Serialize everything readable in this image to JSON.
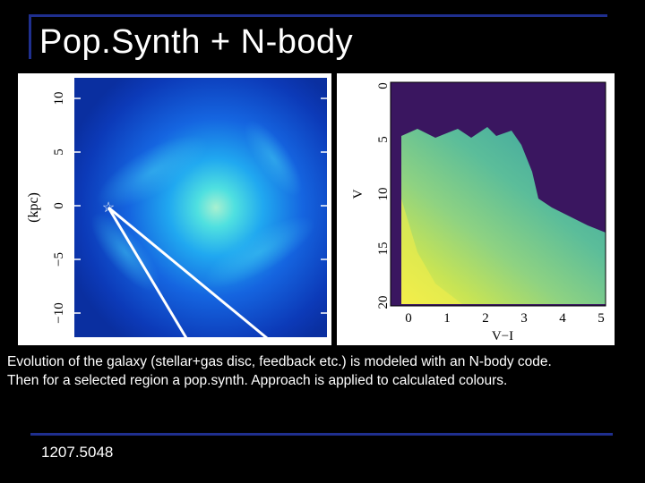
{
  "slide": {
    "title": "Pop.Synth + N-body",
    "caption_line1": "Evolution of the galaxy (stellar+gas disc, feedback etc.) is modeled with an N-body code.",
    "caption_line2": "Then for a selected region a pop.synth. Approach is applied to calculated colours.",
    "reference": "1207.5048"
  },
  "colors": {
    "background": "#000000",
    "rule": "#1f2f8f",
    "text": "#ffffff"
  },
  "galaxy_plot": {
    "ylabel": "(kpc)",
    "yticks": [
      "10",
      "5",
      "0",
      "−5",
      "−10"
    ],
    "marker": "☆"
  },
  "cmd_plot": {
    "ylabel": "V",
    "xlabel": "V−I",
    "xticks": [
      "0",
      "1",
      "2",
      "3",
      "4",
      "5"
    ],
    "yticks": [
      "0",
      "5",
      "10",
      "15",
      "20"
    ]
  }
}
